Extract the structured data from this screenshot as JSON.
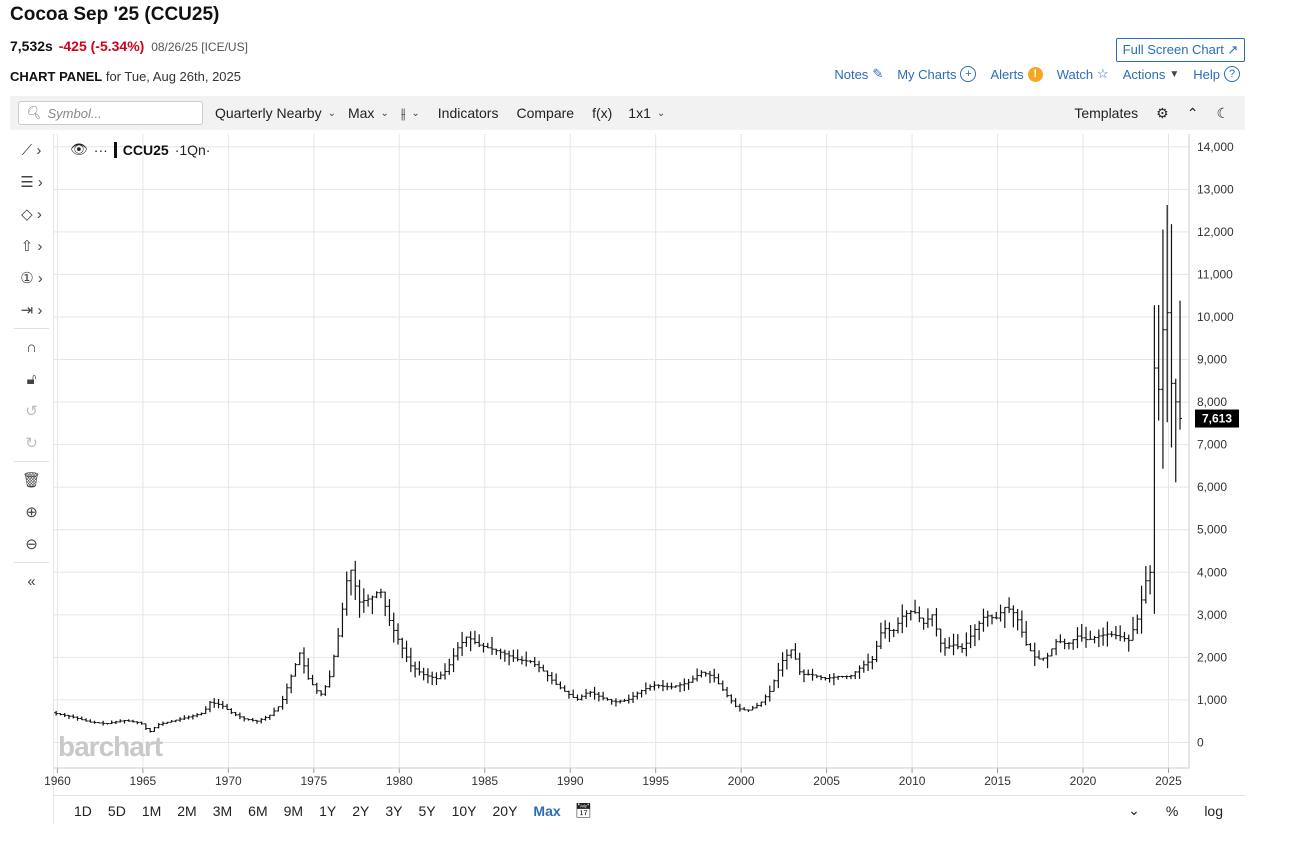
{
  "header": {
    "title": "Cocoa Sep '25 (CCU25)",
    "last": "7,532s",
    "change": "-425 (-5.34%)",
    "meta": "08/26/25 [ICE/US]",
    "full_screen_label": "Full Screen Chart ↗",
    "panel_label": "CHART PANEL",
    "panel_date": "for Tue, Aug 26th, 2025"
  },
  "nav": {
    "notes": "Notes",
    "my_charts": "My Charts",
    "alerts": "Alerts",
    "watch": "Watch",
    "actions": "Actions",
    "help": "Help"
  },
  "toolbar": {
    "symbol_placeholder": "Symbol...",
    "interval": "Quarterly Nearby",
    "range": "Max",
    "indicators": "Indicators",
    "compare": "Compare",
    "fx": "f(x)",
    "layout": "1x1",
    "templates": "Templates"
  },
  "legend": {
    "symbol": "CCU25",
    "suffix": "·1Qn·"
  },
  "bottom": {
    "ranges": [
      "1D",
      "5D",
      "1M",
      "2M",
      "3M",
      "6M",
      "9M",
      "1Y",
      "2Y",
      "3Y",
      "5Y",
      "10Y",
      "20Y",
      "Max"
    ],
    "active_range": "Max",
    "percent": "%",
    "log": "log"
  },
  "watermark": "barchart",
  "colors": {
    "accent": "#2a6db5",
    "down": "#d0021b",
    "bar": "#111111",
    "price_tag_bg": "#000000"
  },
  "chart_data": {
    "type": "ohlc",
    "x_ticks": [
      "1960",
      "1965",
      "1970",
      "1975",
      "1980",
      "1985",
      "1990",
      "1995",
      "2000",
      "2005",
      "2010",
      "2015",
      "2020",
      "2025"
    ],
    "y_ticks": [
      "14,000",
      "13,000",
      "12,000",
      "11,000",
      "10,000",
      "9,000",
      "8,000",
      "7,000",
      "6,000",
      "5,000",
      "4,000",
      "3,000",
      "2,000",
      "1,000",
      "0"
    ],
    "ylim": [
      -600,
      14300
    ],
    "xlim": [
      1959.8,
      2026.2
    ],
    "grid": true,
    "last_price_tag": "7,613",
    "last_price_value": 7613,
    "series_anchor_points": [
      [
        1959.8,
        700
      ],
      [
        1961,
        600
      ],
      [
        1962,
        480
      ],
      [
        1963,
        440
      ],
      [
        1964,
        520
      ],
      [
        1965,
        460
      ],
      [
        1965.5,
        240
      ],
      [
        1966,
        420
      ],
      [
        1967,
        520
      ],
      [
        1968,
        620
      ],
      [
        1968.7,
        700
      ],
      [
        1969,
        950
      ],
      [
        1969.7,
        880
      ],
      [
        1970.3,
        700
      ],
      [
        1971,
        560
      ],
      [
        1971.8,
        500
      ],
      [
        1972.5,
        620
      ],
      [
        1973.2,
        900
      ],
      [
        1973.7,
        1450
      ],
      [
        1974.3,
        2100
      ],
      [
        1974.8,
        1500
      ],
      [
        1975.5,
        1100
      ],
      [
        1976,
        1450
      ],
      [
        1976.6,
        2600
      ],
      [
        1977.2,
        4200
      ],
      [
        1977.8,
        3300
      ],
      [
        1978.5,
        3400
      ],
      [
        1979,
        3600
      ],
      [
        1979.6,
        2800
      ],
      [
        1980.2,
        2300
      ],
      [
        1980.8,
        1800
      ],
      [
        1981.5,
        1600
      ],
      [
        1982.3,
        1500
      ],
      [
        1982.9,
        1700
      ],
      [
        1983.5,
        2200
      ],
      [
        1984.1,
        2500
      ],
      [
        1984.7,
        2300
      ],
      [
        1985.5,
        2200
      ],
      [
        1986.2,
        2100
      ],
      [
        1987,
        1950
      ],
      [
        1987.8,
        1900
      ],
      [
        1988.5,
        1700
      ],
      [
        1989.2,
        1400
      ],
      [
        1989.8,
        1200
      ],
      [
        1990.5,
        1000
      ],
      [
        1991.2,
        1200
      ],
      [
        1992,
        1050
      ],
      [
        1992.7,
        950
      ],
      [
        1993.5,
        1000
      ],
      [
        1994.2,
        1200
      ],
      [
        1995,
        1350
      ],
      [
        1996,
        1300
      ],
      [
        1997,
        1400
      ],
      [
        1997.8,
        1650
      ],
      [
        1998.5,
        1550
      ],
      [
        1999.2,
        1150
      ],
      [
        1999.9,
        800
      ],
      [
        2000.5,
        750
      ],
      [
        2001.2,
        900
      ],
      [
        2001.8,
        1200
      ],
      [
        2002.5,
        1900
      ],
      [
        2003.1,
        2200
      ],
      [
        2003.6,
        1600
      ],
      [
        2004.2,
        1600
      ],
      [
        2005,
        1500
      ],
      [
        2005.8,
        1550
      ],
      [
        2006.5,
        1550
      ],
      [
        2007.2,
        1800
      ],
      [
        2007.8,
        1950
      ],
      [
        2008.4,
        2700
      ],
      [
        2009,
        2600
      ],
      [
        2009.6,
        3000
      ],
      [
        2010.2,
        3100
      ],
      [
        2010.8,
        2800
      ],
      [
        2011.3,
        3000
      ],
      [
        2011.9,
        2200
      ],
      [
        2012.5,
        2300
      ],
      [
        2013.1,
        2200
      ],
      [
        2013.7,
        2600
      ],
      [
        2014.4,
        3000
      ],
      [
        2015,
        2900
      ],
      [
        2015.6,
        3200
      ],
      [
        2016.2,
        3000
      ],
      [
        2016.8,
        2300
      ],
      [
        2017.4,
        1950
      ],
      [
        2018,
        2000
      ],
      [
        2018.6,
        2400
      ],
      [
        2019.2,
        2300
      ],
      [
        2019.8,
        2500
      ],
      [
        2020.4,
        2400
      ],
      [
        2021,
        2500
      ],
      [
        2021.6,
        2550
      ],
      [
        2022.2,
        2500
      ],
      [
        2022.8,
        2400
      ],
      [
        2023.3,
        2900
      ],
      [
        2023.8,
        3800
      ],
      [
        2024.05,
        4000
      ],
      [
        2024.25,
        9000
      ],
      [
        2024.5,
        8000
      ],
      [
        2024.75,
        9500
      ],
      [
        2025,
        10500
      ],
      [
        2025.25,
        8500
      ],
      [
        2025.5,
        8200
      ],
      [
        2025.65,
        7613
      ]
    ]
  }
}
